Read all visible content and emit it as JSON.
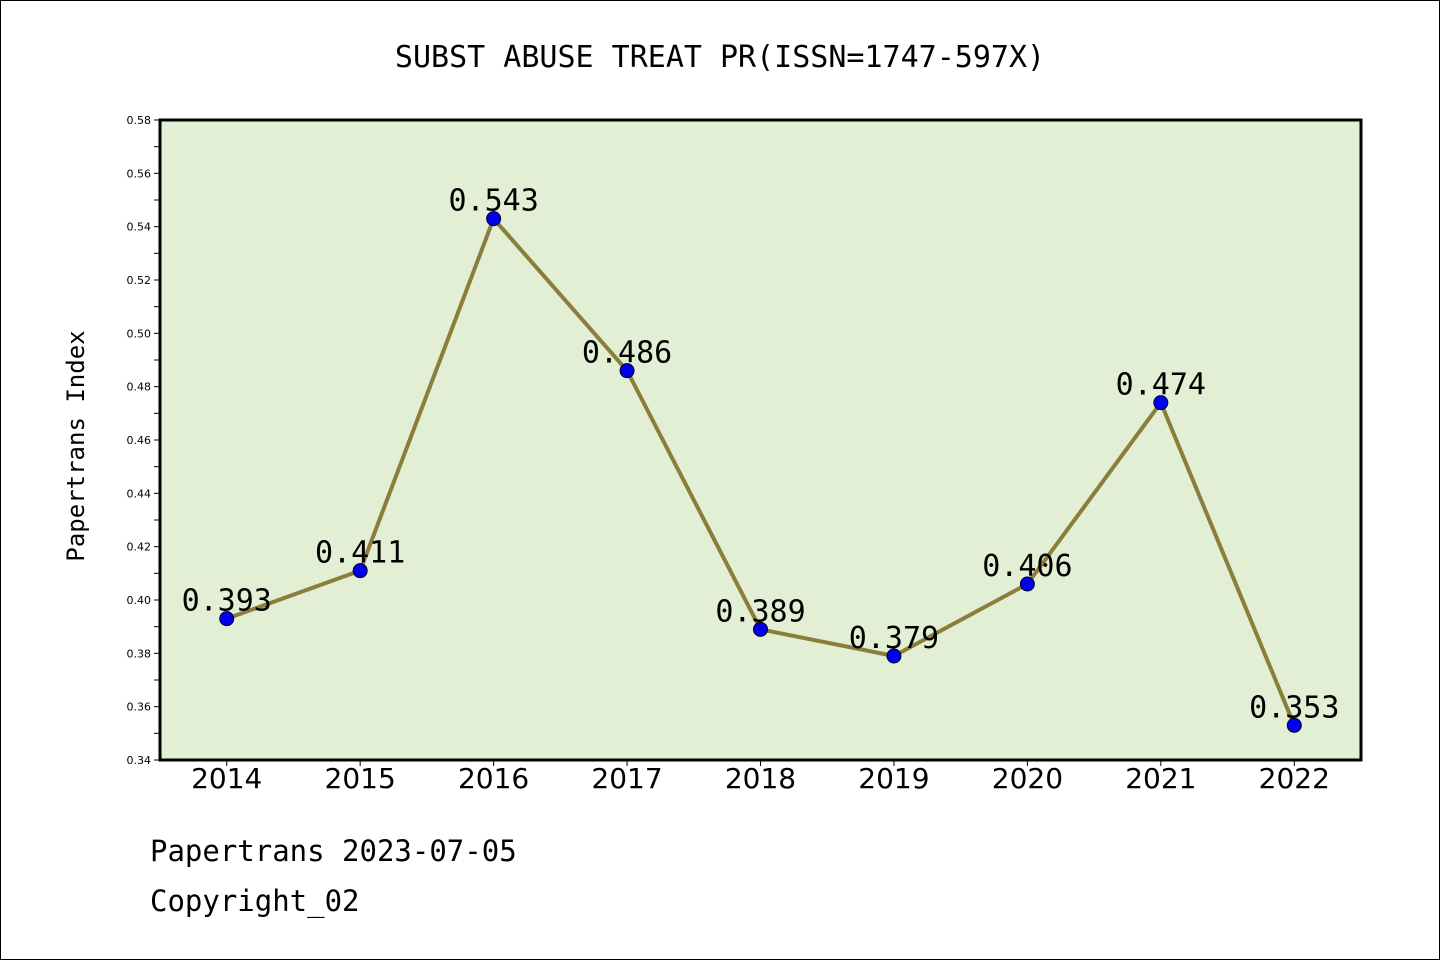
{
  "chart_data": {
    "type": "line",
    "title": "SUBST ABUSE TREAT PR(ISSN=1747-597X)",
    "ylabel": "Papertrans Index",
    "xlabel": "",
    "categories": [
      "2014",
      "2015",
      "2016",
      "2017",
      "2018",
      "2019",
      "2020",
      "2021",
      "2022"
    ],
    "series": [
      {
        "values": [
          0.393,
          0.411,
          0.543,
          0.486,
          0.389,
          0.379,
          0.406,
          0.474,
          0.353
        ],
        "labels": [
          "0.393",
          "0.411",
          "0.543",
          "0.486",
          "0.389",
          "0.379",
          "0.406",
          "0.474",
          "0.353"
        ]
      }
    ],
    "ylim": [
      0.34,
      0.58
    ],
    "yticks": [
      "0.34",
      "0.36",
      "0.38",
      "0.40",
      "0.42",
      "0.44",
      "0.46",
      "0.48",
      "0.50",
      "0.52",
      "0.54",
      "0.56",
      "0.58"
    ],
    "grid": false,
    "legend": "none",
    "colors": {
      "plot_bg": "#e2efd5",
      "line": "#8b7d3a",
      "marker": "#0000ee"
    }
  },
  "footer": {
    "line1": "Papertrans 2023-07-05",
    "line2": "Copyright_02"
  }
}
